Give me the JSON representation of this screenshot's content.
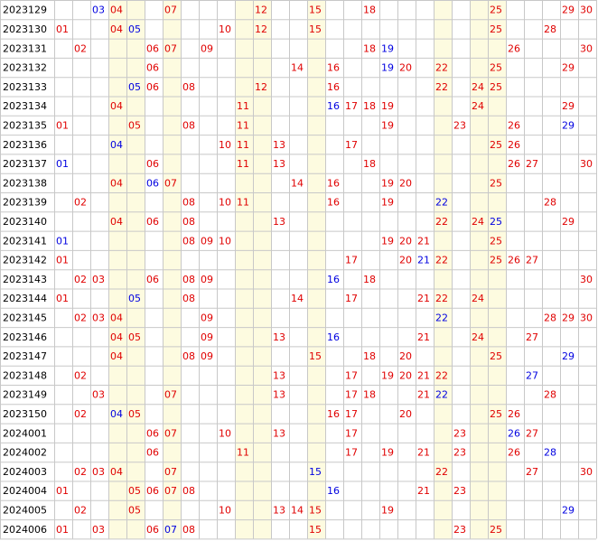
{
  "table": {
    "rows": [
      {
        "period": "2023129",
        "red": [
          "04",
          "07",
          "12",
          "15",
          "18",
          "25",
          "29",
          "30"
        ],
        "blue": [
          "03"
        ]
      },
      {
        "period": "2023130",
        "red": [
          "01",
          "04",
          "10",
          "12",
          "15",
          "25",
          "28"
        ],
        "blue": [
          "05"
        ]
      },
      {
        "period": "2023131",
        "red": [
          "02",
          "06",
          "07",
          "09",
          "18",
          "26",
          "30"
        ],
        "blue": [
          "19"
        ]
      },
      {
        "period": "2023132",
        "red": [
          "06",
          "14",
          "16",
          "20",
          "22",
          "25",
          "29"
        ],
        "blue": [
          "19"
        ]
      },
      {
        "period": "2023133",
        "red": [
          "06",
          "08",
          "12",
          "16",
          "22",
          "24",
          "25"
        ],
        "blue": [
          "05"
        ]
      },
      {
        "period": "2023134",
        "red": [
          "04",
          "11",
          "17",
          "18",
          "19",
          "24",
          "29"
        ],
        "blue": [
          "16"
        ]
      },
      {
        "period": "2023135",
        "red": [
          "01",
          "05",
          "08",
          "11",
          "19",
          "23",
          "26"
        ],
        "blue": [
          "29"
        ]
      },
      {
        "period": "2023136",
        "red": [
          "10",
          "11",
          "13",
          "17",
          "25",
          "26"
        ],
        "blue": [
          "04"
        ]
      },
      {
        "period": "2023137",
        "red": [
          "06",
          "11",
          "13",
          "18",
          "26",
          "27",
          "30"
        ],
        "blue": [
          "01"
        ]
      },
      {
        "period": "2023138",
        "red": [
          "04",
          "07",
          "14",
          "16",
          "19",
          "20",
          "25"
        ],
        "blue": [
          "06"
        ]
      },
      {
        "period": "2023139",
        "red": [
          "02",
          "08",
          "10",
          "11",
          "16",
          "19",
          "28"
        ],
        "blue": [
          "22"
        ]
      },
      {
        "period": "2023140",
        "red": [
          "04",
          "06",
          "08",
          "13",
          "22",
          "24",
          "29"
        ],
        "blue": [
          "25"
        ]
      },
      {
        "period": "2023141",
        "red": [
          "08",
          "09",
          "10",
          "19",
          "20",
          "21",
          "25"
        ],
        "blue": [
          "01"
        ]
      },
      {
        "period": "2023142",
        "red": [
          "01",
          "17",
          "20",
          "22",
          "25",
          "26",
          "27"
        ],
        "blue": [
          "21"
        ]
      },
      {
        "period": "2023143",
        "red": [
          "02",
          "03",
          "06",
          "08",
          "09",
          "18",
          "30"
        ],
        "blue": [
          "16"
        ]
      },
      {
        "period": "2023144",
        "red": [
          "01",
          "08",
          "14",
          "17",
          "21",
          "22",
          "24"
        ],
        "blue": [
          "05"
        ]
      },
      {
        "period": "2023145",
        "red": [
          "02",
          "03",
          "04",
          "09",
          "28",
          "29",
          "30"
        ],
        "blue": [
          "22"
        ]
      },
      {
        "period": "2023146",
        "red": [
          "04",
          "05",
          "09",
          "13",
          "21",
          "24",
          "27"
        ],
        "blue": [
          "16"
        ]
      },
      {
        "period": "2023147",
        "red": [
          "04",
          "08",
          "09",
          "15",
          "18",
          "20",
          "25"
        ],
        "blue": [
          "29"
        ]
      },
      {
        "period": "2023148",
        "red": [
          "02",
          "13",
          "17",
          "19",
          "20",
          "21",
          "22"
        ],
        "blue": [
          "27"
        ]
      },
      {
        "period": "2023149",
        "red": [
          "03",
          "07",
          "13",
          "17",
          "18",
          "21",
          "28"
        ],
        "blue": [
          "22"
        ]
      },
      {
        "period": "2023150",
        "red": [
          "02",
          "05",
          "16",
          "17",
          "20",
          "25",
          "26"
        ],
        "blue": [
          "04"
        ]
      },
      {
        "period": "2024001",
        "red": [
          "06",
          "07",
          "10",
          "13",
          "17",
          "23",
          "27"
        ],
        "blue": [
          "26"
        ]
      },
      {
        "period": "2024002",
        "red": [
          "06",
          "11",
          "17",
          "19",
          "21",
          "23",
          "26"
        ],
        "blue": [
          "28"
        ]
      },
      {
        "period": "2024003",
        "red": [
          "02",
          "03",
          "04",
          "07",
          "22",
          "27",
          "30"
        ],
        "blue": [
          "15"
        ]
      },
      {
        "period": "2024004",
        "red": [
          "01",
          "05",
          "06",
          "07",
          "08",
          "21",
          "23"
        ],
        "blue": [
          "16"
        ]
      },
      {
        "period": "2024005",
        "red": [
          "02",
          "05",
          "10",
          "13",
          "14",
          "15",
          "19"
        ],
        "blue": [
          "29"
        ]
      },
      {
        "period": "2024006",
        "red": [
          "01",
          "03",
          "06",
          "08",
          "15",
          "23",
          "25"
        ],
        "blue": [
          "07"
        ]
      }
    ]
  }
}
